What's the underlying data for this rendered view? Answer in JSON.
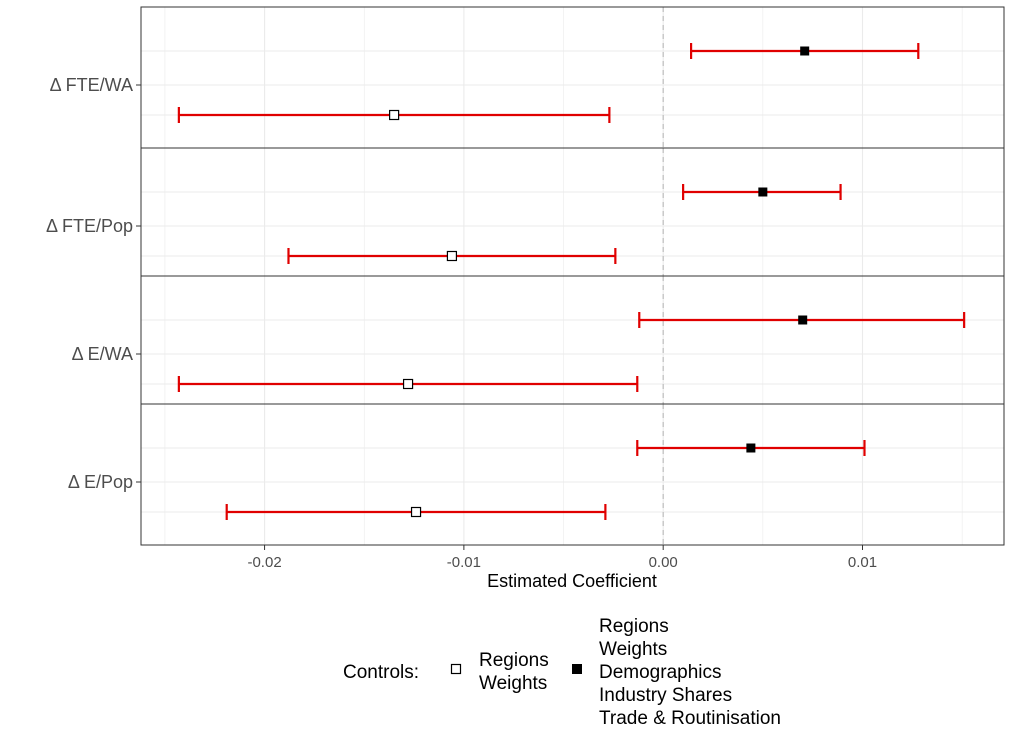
{
  "chart_data": {
    "type": "errorbar",
    "xlabel": "Estimated Coefficient",
    "xlim": [
      -0.0262,
      0.0171
    ],
    "xticks": [
      -0.02,
      -0.01,
      0.0,
      0.01
    ],
    "xtick_labels": [
      "-0.02",
      "-0.01",
      "0.00",
      "0.01"
    ],
    "reference_line": 0,
    "grid": true,
    "panels": [
      {
        "label": "Δ  FTE/WA",
        "estimates": [
          {
            "series": "full",
            "coef": 0.0071,
            "lo": 0.0014,
            "hi": 0.0128
          },
          {
            "series": "basic",
            "coef": -0.0135,
            "lo": -0.0243,
            "hi": -0.0027
          }
        ]
      },
      {
        "label": "Δ  FTE/Pop",
        "estimates": [
          {
            "series": "full",
            "coef": 0.005,
            "lo": 0.001,
            "hi": 0.0089
          },
          {
            "series": "basic",
            "coef": -0.0106,
            "lo": -0.0188,
            "hi": -0.0024
          }
        ]
      },
      {
        "label": "Δ  E/WA",
        "estimates": [
          {
            "series": "full",
            "coef": 0.007,
            "lo": -0.0012,
            "hi": 0.0151
          },
          {
            "series": "basic",
            "coef": -0.0128,
            "lo": -0.0243,
            "hi": -0.0013
          }
        ]
      },
      {
        "label": "Δ  E/Pop",
        "estimates": [
          {
            "series": "full",
            "coef": 0.0044,
            "lo": -0.0013,
            "hi": 0.0101
          },
          {
            "series": "basic",
            "coef": -0.0124,
            "lo": -0.0219,
            "hi": -0.0029
          }
        ]
      }
    ],
    "legend": {
      "title": "Controls:",
      "placement": "bottom",
      "entries": [
        {
          "series": "basic",
          "marker": "open-square",
          "lines": [
            "Regions",
            "Weights"
          ]
        },
        {
          "series": "full",
          "marker": "filled-square",
          "lines": [
            "Regions",
            "Weights",
            "Demographics",
            "Industry Shares",
            "Trade & Routinisation"
          ]
        }
      ]
    },
    "colors": {
      "errorbar": "#e00000",
      "marker": "#000000",
      "grid": "#ebebeb",
      "zero_line": "#bebebe",
      "panel_border": "#333333"
    }
  }
}
